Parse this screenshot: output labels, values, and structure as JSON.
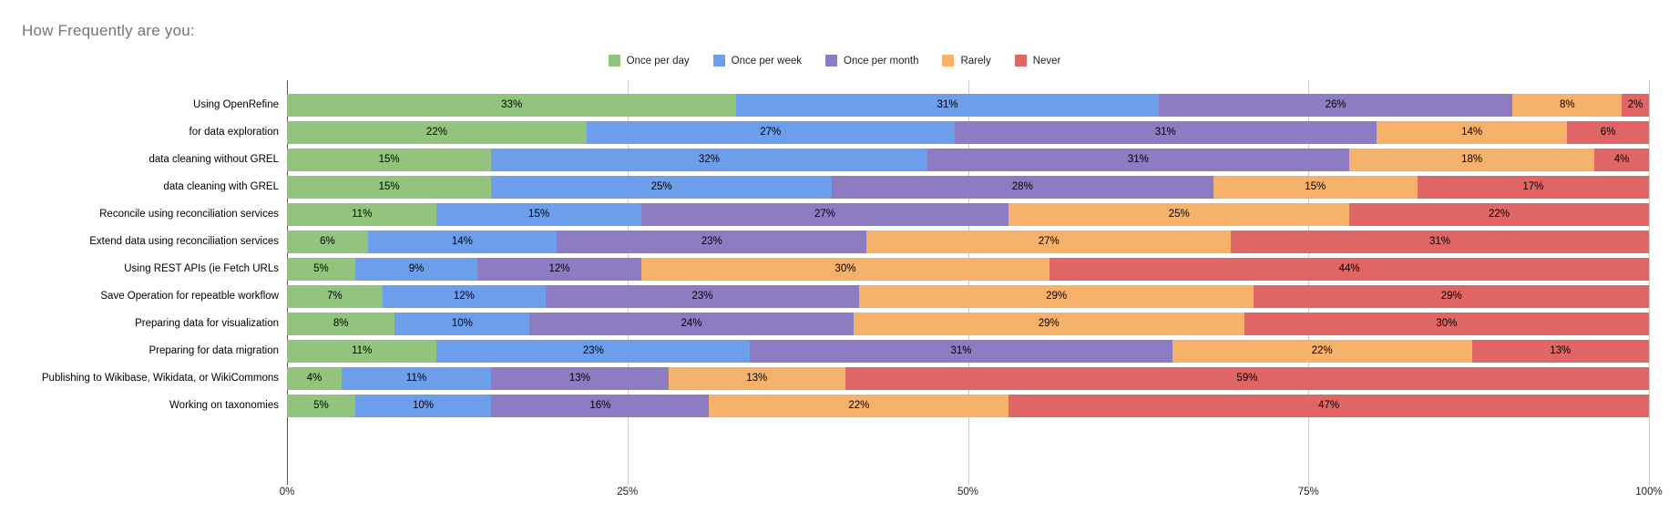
{
  "title": "How Frequently are you:",
  "chart_data": {
    "type": "bar",
    "stacked": true,
    "orientation": "horizontal",
    "title": "How Frequently are you:",
    "value_suffix": "%",
    "xlim": [
      0,
      100
    ],
    "x_ticks": [
      "0%",
      "25%",
      "50%",
      "75%",
      "100%"
    ],
    "grid": true,
    "legend_position": "top-center",
    "categories": [
      "Using OpenRefine",
      "for data exploration",
      "data cleaning without GREL",
      "data cleaning with GREL",
      "Reconcile using reconciliation services",
      "Extend data using reconciliation services",
      "Using REST APIs (ie Fetch URLs",
      "Save Operation for repeatble workflow",
      "Preparing data for visualization",
      "Preparing for data migration",
      "Publishing to Wikibase, Wikidata, or WikiCommons",
      "Working on taxonomies"
    ],
    "series": [
      {
        "name": "Once per day",
        "color": "#93c47d",
        "values": [
          33,
          22,
          15,
          15,
          11,
          6,
          5,
          7,
          8,
          11,
          4,
          5
        ]
      },
      {
        "name": "Once per week",
        "color": "#6d9eeb",
        "values": [
          31,
          27,
          32,
          25,
          15,
          14,
          9,
          12,
          10,
          23,
          11,
          10
        ]
      },
      {
        "name": "Once per month",
        "color": "#8e7cc3",
        "values": [
          26,
          31,
          31,
          28,
          27,
          23,
          12,
          23,
          24,
          31,
          13,
          16
        ]
      },
      {
        "name": "Rarely",
        "color": "#f6b26b",
        "values": [
          8,
          14,
          18,
          15,
          25,
          27,
          30,
          29,
          29,
          22,
          13,
          22
        ]
      },
      {
        "name": "Never",
        "color": "#e06666",
        "values": [
          2,
          6,
          4,
          17,
          22,
          31,
          44,
          29,
          30,
          13,
          59,
          47
        ]
      }
    ]
  },
  "colors": {
    "title_text": "#757575",
    "gridline": "#cccccc",
    "axis_line": "#555555",
    "label_text": "#000000"
  }
}
